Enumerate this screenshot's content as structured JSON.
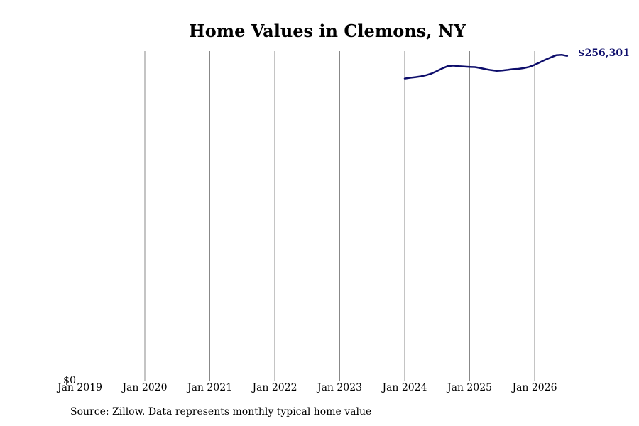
{
  "chart_data": {
    "type": "line",
    "title": "Home Values in Clemons, NY",
    "xlabel": "",
    "ylabel": "",
    "x_ticks": [
      "Jan 2019",
      "Jan 2020",
      "Jan 2021",
      "Jan 2022",
      "Jan 2023",
      "Jan 2024",
      "Jan 2025",
      "Jan 2026"
    ],
    "y_ticks": [
      "$0"
    ],
    "ylim": [
      0,
      259000
    ],
    "xlim": [
      "2019-01",
      "2026-09"
    ],
    "grid": "vertical",
    "end_label": "$256,301",
    "colors": {
      "line": "#0d0d6b",
      "grid": "#888888"
    },
    "series": [
      {
        "x": [
          "2024-01",
          "2024-02",
          "2024-03",
          "2024-04",
          "2024-05",
          "2024-06",
          "2024-07",
          "2024-08",
          "2024-09",
          "2024-10",
          "2024-11",
          "2024-12",
          "2025-01",
          "2025-02",
          "2025-03",
          "2025-04",
          "2025-05",
          "2025-06",
          "2025-07",
          "2025-08",
          "2025-09",
          "2025-10",
          "2025-11",
          "2025-12",
          "2026-01",
          "2026-02",
          "2026-03",
          "2026-04",
          "2026-05",
          "2026-06",
          "2026-07"
        ],
        "y": [
          238500,
          239100,
          239600,
          240200,
          241200,
          242500,
          244500,
          246600,
          248300,
          248700,
          248200,
          247900,
          247700,
          247500,
          246700,
          245800,
          245100,
          244600,
          244900,
          245300,
          245900,
          246100,
          246700,
          247700,
          249300,
          251300,
          253400,
          255200,
          256900,
          257200,
          256301
        ]
      }
    ]
  },
  "footer": {
    "source": "Source: Zillow. Data represents monthly typical home value"
  }
}
